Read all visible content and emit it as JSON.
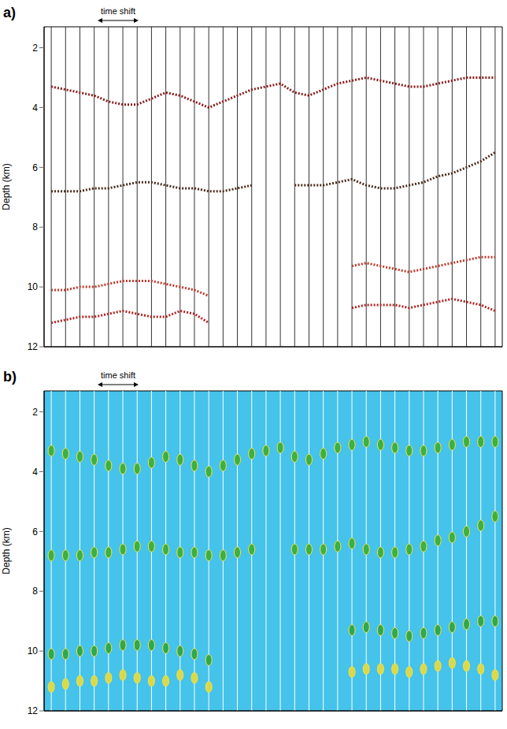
{
  "chart_data": [
    {
      "type": "line",
      "title": "a)",
      "y_label": "Depth (km)",
      "annotation": "time shift",
      "tick_labels": "y",
      "x": [
        1,
        2,
        3,
        4,
        5,
        6,
        7,
        8,
        9,
        10,
        11,
        12,
        13,
        14,
        15,
        16,
        17,
        18,
        19,
        20,
        21,
        22,
        23,
        24,
        25,
        26,
        27,
        28,
        29,
        30,
        31,
        32
      ],
      "xlim": [
        0.5,
        32.5
      ],
      "ylim": [
        1.3,
        12
      ],
      "yticks": [
        2,
        4,
        6,
        8,
        10,
        12
      ],
      "line_style": "dotted",
      "series": [
        {
          "color": "#8b1a1a",
          "values": [
            3.3,
            3.4,
            3.5,
            3.6,
            3.8,
            3.9,
            3.9,
            3.7,
            3.5,
            3.6,
            3.8,
            4.0,
            3.8,
            3.6,
            3.4,
            3.3,
            3.2,
            3.5,
            3.6,
            3.4,
            3.2,
            3.1,
            3.0,
            3.1,
            3.2,
            3.3,
            3.3,
            3.2,
            3.1,
            3.0,
            3.0,
            3.0
          ]
        },
        {
          "color": "#4a2a1a",
          "values": [
            6.8,
            6.8,
            6.8,
            6.7,
            6.7,
            6.6,
            6.5,
            6.5,
            6.6,
            6.7,
            6.7,
            6.8,
            6.8,
            6.7,
            6.6,
            null,
            null,
            6.6,
            6.6,
            6.6,
            6.5,
            6.4,
            6.6,
            6.7,
            6.7,
            6.6,
            6.5,
            6.3,
            6.2,
            6.0,
            5.8,
            5.5
          ]
        },
        {
          "color": "#c0392b",
          "values": [
            10.1,
            10.1,
            10.0,
            10.0,
            9.9,
            9.8,
            9.8,
            9.8,
            9.9,
            10.0,
            10.1,
            10.3,
            null,
            null,
            null,
            null,
            null,
            null,
            null,
            null,
            null,
            9.3,
            9.2,
            9.3,
            9.4,
            9.5,
            9.4,
            9.3,
            9.2,
            9.1,
            9.0,
            9.0
          ]
        },
        {
          "color": "#b22222",
          "values": [
            11.2,
            11.1,
            11.0,
            11.0,
            10.9,
            10.8,
            10.9,
            11.0,
            11.0,
            10.8,
            10.9,
            11.2,
            null,
            null,
            null,
            null,
            null,
            null,
            null,
            null,
            null,
            10.7,
            10.6,
            10.6,
            10.6,
            10.7,
            10.6,
            10.5,
            10.4,
            10.5,
            10.6,
            10.8
          ]
        }
      ]
    },
    {
      "type": "scatter",
      "title": "b)",
      "y_label": "Depth (km)",
      "annotation": "time shift",
      "tick_labels": "y",
      "x": [
        1,
        2,
        3,
        4,
        5,
        6,
        7,
        8,
        9,
        10,
        11,
        12,
        13,
        14,
        15,
        16,
        17,
        18,
        19,
        20,
        21,
        22,
        23,
        24,
        25,
        26,
        27,
        28,
        29,
        30,
        31,
        32
      ],
      "xlim": [
        0.5,
        32.5
      ],
      "ylim": [
        1.3,
        12
      ],
      "yticks": [
        2,
        4,
        6,
        8,
        10,
        12
      ],
      "marker": "ellipse",
      "series": [
        {
          "color": "#3cb043",
          "values": [
            3.3,
            3.4,
            3.5,
            3.6,
            3.8,
            3.9,
            3.9,
            3.7,
            3.5,
            3.6,
            3.8,
            4.0,
            3.8,
            3.6,
            3.4,
            3.3,
            3.2,
            3.5,
            3.6,
            3.4,
            3.2,
            3.1,
            3.0,
            3.1,
            3.2,
            3.3,
            3.3,
            3.2,
            3.1,
            3.0,
            3.0,
            3.0
          ]
        },
        {
          "color": "#3cb043",
          "values": [
            6.8,
            6.8,
            6.8,
            6.7,
            6.7,
            6.6,
            6.5,
            6.5,
            6.6,
            6.7,
            6.7,
            6.8,
            6.8,
            6.7,
            6.6,
            null,
            null,
            6.6,
            6.6,
            6.6,
            6.5,
            6.4,
            6.6,
            6.7,
            6.7,
            6.6,
            6.5,
            6.3,
            6.2,
            6.0,
            5.8,
            5.5
          ]
        },
        {
          "color": "#2fa84f",
          "values": [
            10.1,
            10.1,
            10.0,
            10.0,
            9.9,
            9.8,
            9.8,
            9.8,
            9.9,
            10.0,
            10.1,
            10.3,
            null,
            null,
            null,
            null,
            null,
            null,
            null,
            null,
            null,
            9.3,
            9.2,
            9.3,
            9.4,
            9.5,
            9.4,
            9.3,
            9.2,
            9.1,
            9.0,
            9.0
          ]
        },
        {
          "color": "#d9d94a",
          "values": [
            11.2,
            11.1,
            11.0,
            11.0,
            10.9,
            10.8,
            10.9,
            11.0,
            11.0,
            10.8,
            10.9,
            11.2,
            null,
            null,
            null,
            null,
            null,
            null,
            null,
            null,
            null,
            10.7,
            10.6,
            10.6,
            10.6,
            10.7,
            10.6,
            10.5,
            10.4,
            10.5,
            10.6,
            10.8
          ]
        }
      ]
    }
  ]
}
